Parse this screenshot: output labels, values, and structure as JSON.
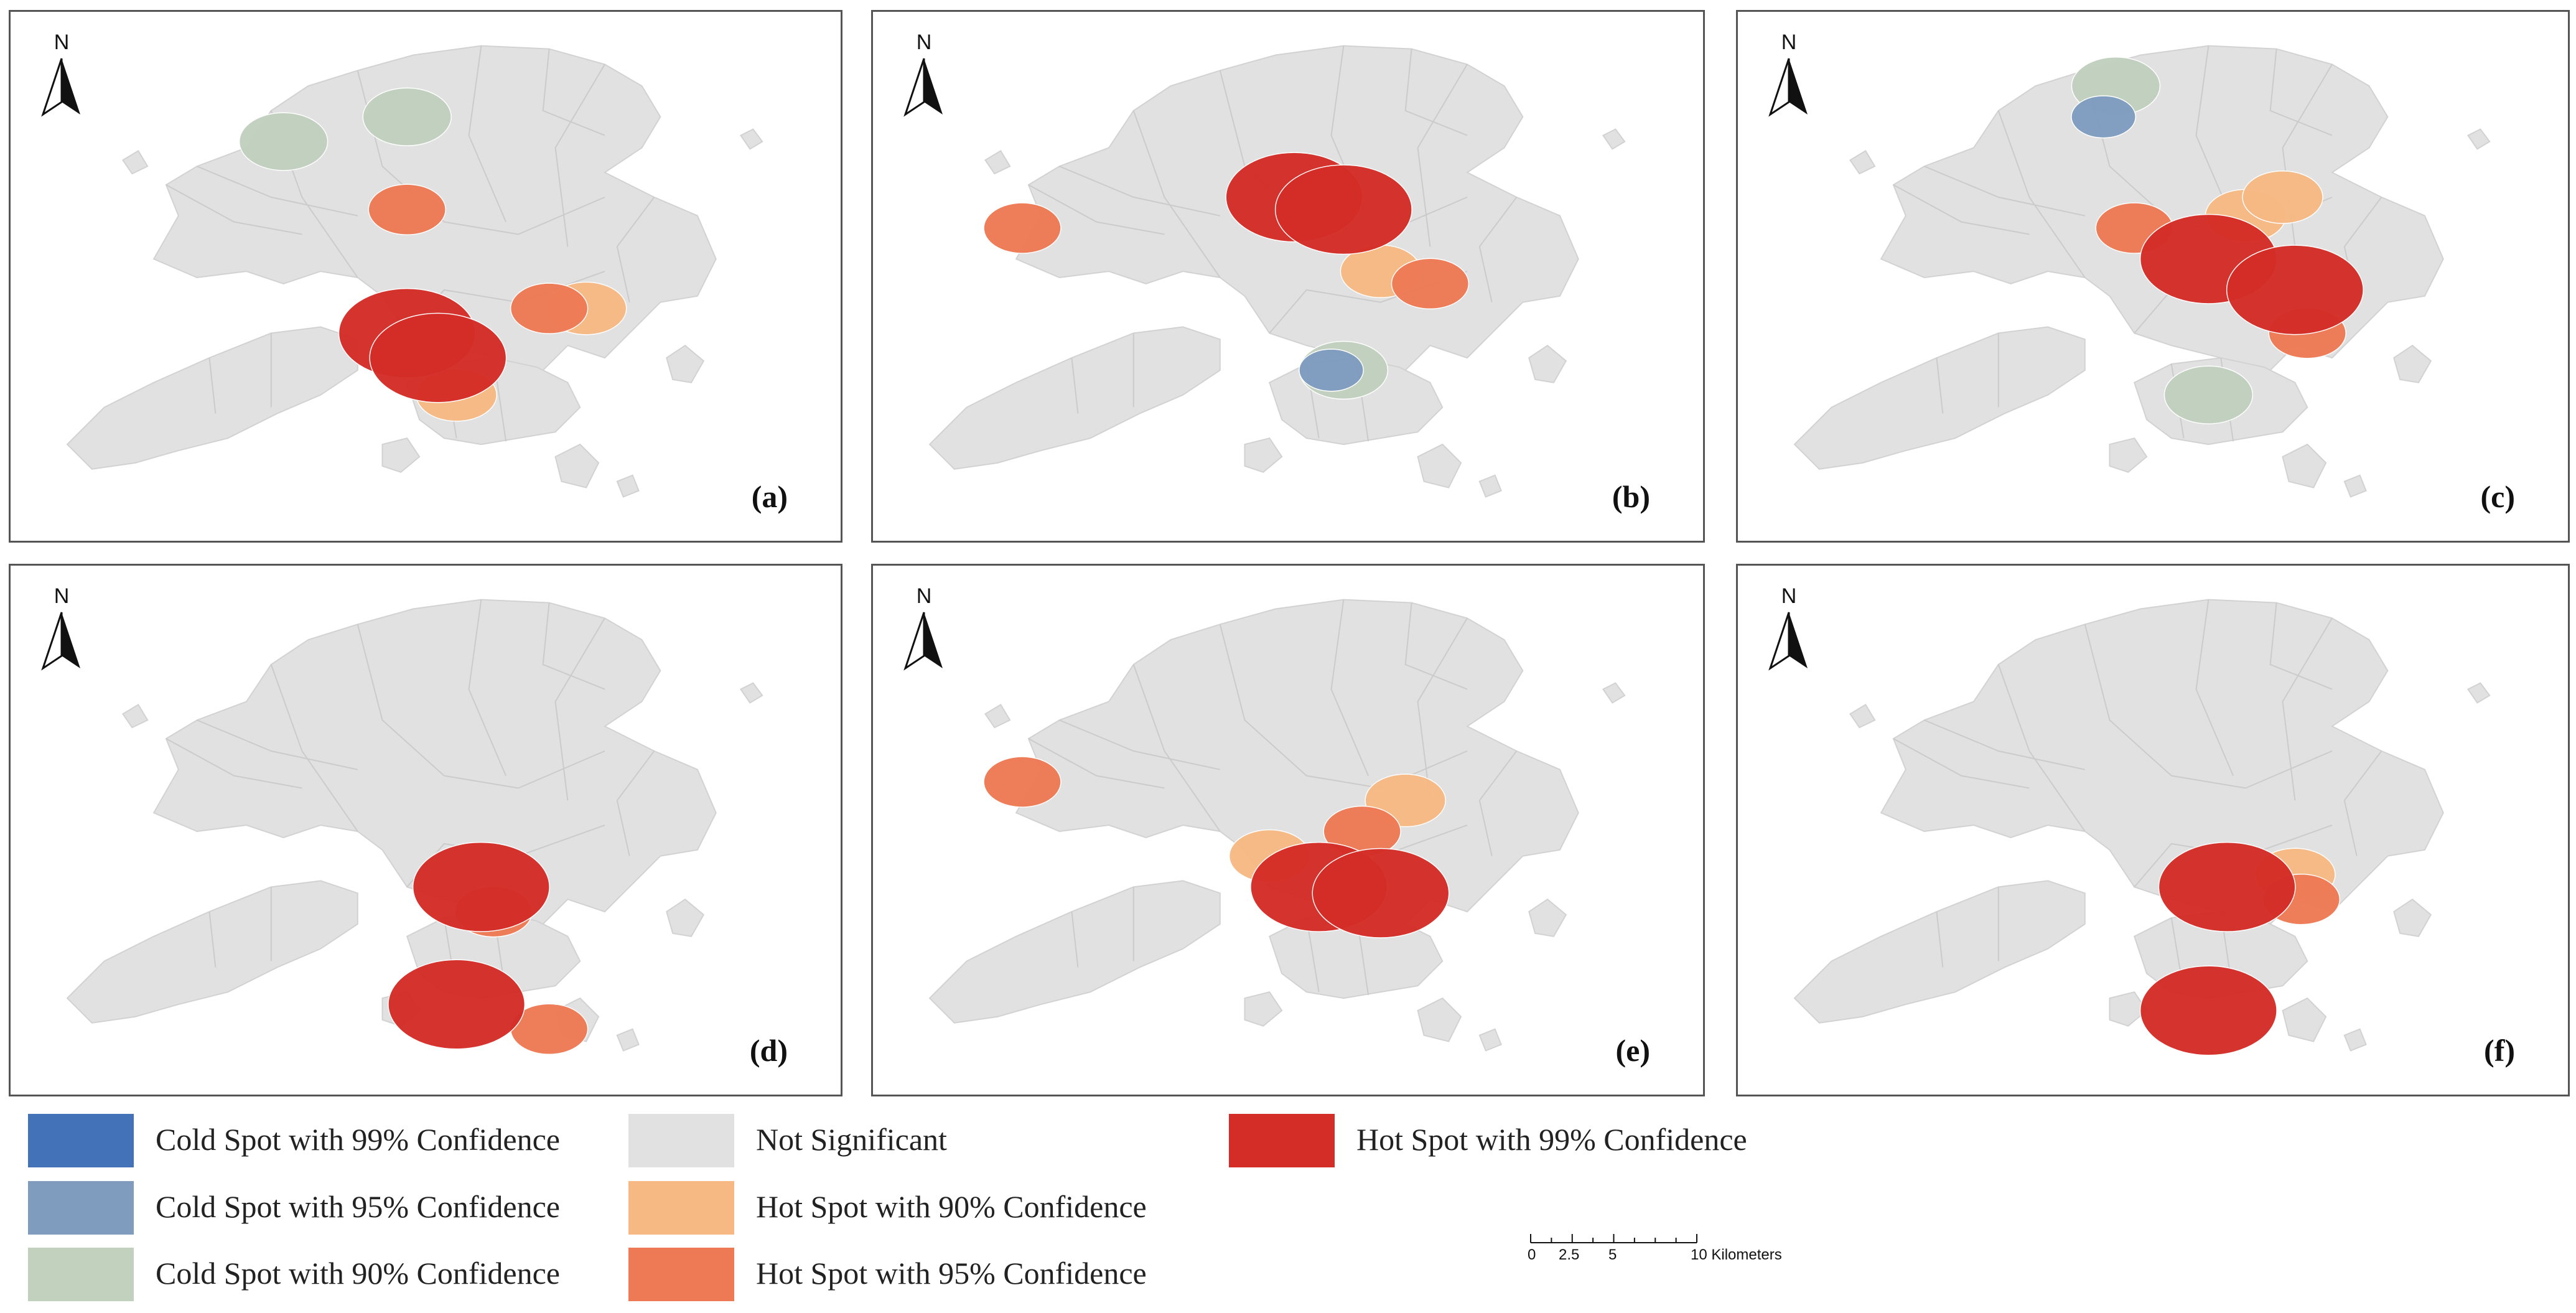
{
  "panels": [
    {
      "label": "(a)",
      "hot99": [
        [
          640,
          520
        ],
        [
          690,
          560
        ]
      ],
      "hot95": [
        [
          870,
          480
        ],
        [
          640,
          320
        ]
      ],
      "hot90": [
        [
          930,
          480
        ],
        [
          720,
          620
        ]
      ],
      "cold90": [
        [
          440,
          210
        ],
        [
          640,
          170
        ]
      ],
      "cold95": []
    },
    {
      "label": "(b)",
      "hot99": [
        [
          680,
          300
        ],
        [
          760,
          320
        ]
      ],
      "hot95": [
        [
          240,
          350
        ],
        [
          900,
          440
        ]
      ],
      "hot90": [
        [
          820,
          420
        ]
      ],
      "cold90": [
        [
          760,
          580
        ]
      ],
      "cold95": [
        [
          740,
          580
        ]
      ]
    },
    {
      "label": "(c)",
      "hot99": [
        [
          760,
          400
        ],
        [
          900,
          450
        ]
      ],
      "hot95": [
        [
          640,
          350
        ],
        [
          920,
          520
        ]
      ],
      "hot90": [
        [
          820,
          330
        ],
        [
          880,
          300
        ]
      ],
      "cold90": [
        [
          610,
          120
        ],
        [
          760,
          620
        ]
      ],
      "cold95": [
        [
          590,
          170
        ]
      ]
    },
    {
      "label": "(d)",
      "hot99": [
        [
          760,
          520
        ],
        [
          720,
          710
        ]
      ],
      "hot95": [
        [
          870,
          750
        ],
        [
          780,
          560
        ]
      ],
      "hot90": [],
      "cold90": [],
      "cold95": []
    },
    {
      "label": "(e)",
      "hot99": [
        [
          720,
          520
        ],
        [
          820,
          530
        ]
      ],
      "hot95": [
        [
          240,
          350
        ],
        [
          790,
          430
        ]
      ],
      "hot90": [
        [
          860,
          380
        ],
        [
          640,
          470
        ]
      ],
      "cold90": [],
      "cold95": []
    },
    {
      "label": "(f)",
      "hot99": [
        [
          790,
          520
        ],
        [
          760,
          720
        ]
      ],
      "hot95": [
        [
          910,
          540
        ]
      ],
      "hot90": [
        [
          900,
          500
        ]
      ],
      "cold90": [],
      "cold95": []
    }
  ],
  "north_label": "N",
  "legend": [
    {
      "key": "cold99",
      "label": "Cold Spot with 99% Confidence",
      "color": "#4472b8"
    },
    {
      "key": "cold95",
      "label": "Cold Spot with 95% Confidence",
      "color": "#7f9cbf"
    },
    {
      "key": "cold90",
      "label": "Cold Spot with 90% Confidence",
      "color": "#c2d1be"
    },
    {
      "key": "ns",
      "label": "Not Significant",
      "color": "#e1e1e1"
    },
    {
      "key": "hot90",
      "label": "Hot Spot with 90% Confidence",
      "color": "#f7b984"
    },
    {
      "key": "hot95",
      "label": "Hot Spot with 95% Confidence",
      "color": "#ee7a55"
    },
    {
      "key": "hot99",
      "label": "Hot Spot with 99% Confidence",
      "color": "#d42d27"
    }
  ],
  "scale": {
    "ticks": [
      "0",
      "2.5",
      "5",
      "10 Kilometers"
    ],
    "tick_values_km": [
      0,
      2.5,
      5,
      10
    ]
  }
}
